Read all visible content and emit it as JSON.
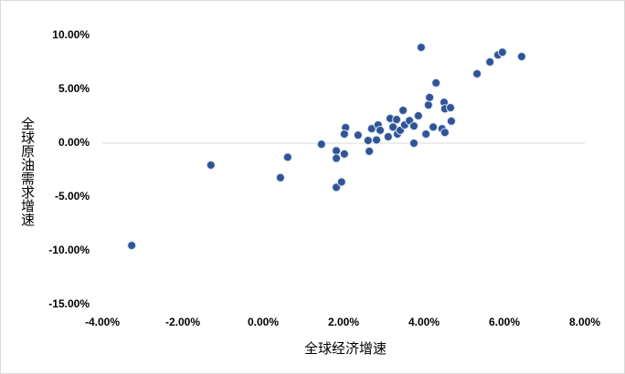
{
  "chart_data": {
    "type": "scatter",
    "x_label": "全球经济增速",
    "y_label": "全球原油需求增速",
    "color": "#2f5597",
    "xlim": [
      -4,
      8
    ],
    "ylim": [
      -15,
      10
    ],
    "xticks": [
      {
        "value": -4,
        "label": "-4.00%"
      },
      {
        "value": -2,
        "label": "-2.00%"
      },
      {
        "value": 0,
        "label": "0.00%"
      },
      {
        "value": 2,
        "label": "2.00%"
      },
      {
        "value": 4,
        "label": "4.00%"
      },
      {
        "value": 6,
        "label": "6.00%"
      },
      {
        "value": 8,
        "label": "8.00%"
      }
    ],
    "yticks": [
      {
        "value": 10,
        "label": "10.00%"
      },
      {
        "value": 5,
        "label": "5.00%"
      },
      {
        "value": 0,
        "label": "0.00%"
      },
      {
        "value": -5,
        "label": "-5.00%"
      },
      {
        "value": -10,
        "label": "-10.00%"
      },
      {
        "value": -15,
        "label": "-15.00%"
      }
    ],
    "x": [
      -3.27,
      -1.3,
      0.43,
      0.61,
      1.45,
      1.82,
      1.82,
      2.02,
      1.82,
      1.95,
      2.05,
      2.02,
      2.36,
      2.64,
      2.61,
      2.7,
      2.82,
      2.86,
      2.91,
      3.11,
      3.16,
      3.23,
      3.32,
      3.34,
      3.41,
      3.48,
      3.52,
      3.64,
      3.75,
      3.75,
      3.86,
      3.93,
      4.05,
      4.11,
      4.14,
      4.23,
      4.3,
      4.45,
      4.5,
      4.52,
      4.52,
      4.66,
      4.68,
      5.32,
      5.64,
      5.84,
      5.95,
      6.43
    ],
    "y": [
      -9.5,
      -2.03,
      -3.2,
      -1.3,
      -0.1,
      -0.7,
      -1.4,
      -1.0,
      -4.1,
      -3.6,
      1.45,
      0.85,
      0.75,
      -0.75,
      0.25,
      1.35,
      0.3,
      1.7,
      1.2,
      0.6,
      2.3,
      1.5,
      2.2,
      0.85,
      1.2,
      3.05,
      1.7,
      2.1,
      1.6,
      0.0,
      2.55,
      8.9,
      0.85,
      3.55,
      4.25,
      1.5,
      5.6,
      1.35,
      3.8,
      1.0,
      3.2,
      3.3,
      2.05,
      6.45,
      7.55,
      8.2,
      8.45,
      8.05
    ]
  }
}
